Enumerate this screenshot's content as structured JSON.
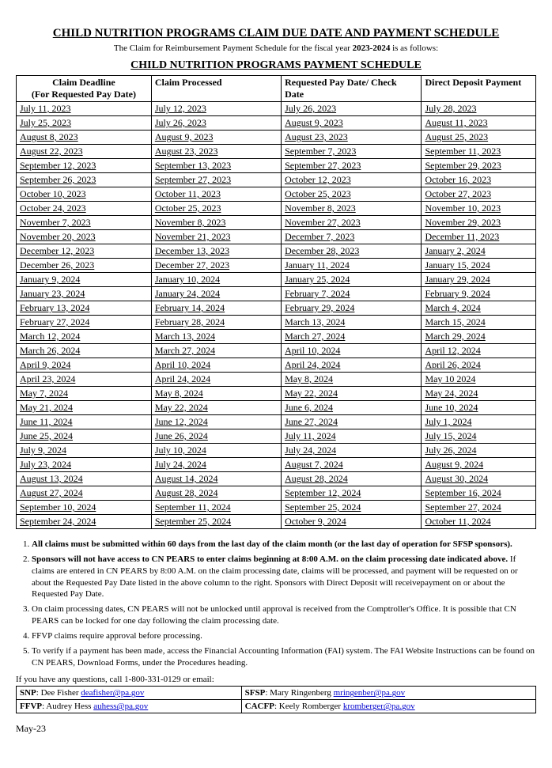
{
  "title": "CHILD NUTRITION PROGRAMS CLAIM DUE DATE AND PAYMENT SCHEDULE",
  "subtitle_pre": "The Claim for Reimbursement Payment Schedule for the fiscal year ",
  "subtitle_year": "2023-2024",
  "subtitle_post": " is as follows:",
  "heading2": "CHILD NUTRITION PROGRAMS PAYMENT SCHEDULE",
  "columns": {
    "c1a": "Claim Deadline",
    "c1b": "(For Requested Pay Date)",
    "c2": "Claim Processed",
    "c3": "Requested Pay Date/ Check Date",
    "c4": "Direct Deposit Payment"
  },
  "rows": [
    [
      "July 11, 2023",
      "July 12, 2023",
      "July 26, 2023",
      "July 28, 2023"
    ],
    [
      "July 25, 2023",
      "July 26, 2023",
      "August 9, 2023",
      "August 11, 2023"
    ],
    [
      "August 8, 2023",
      "August 9, 2023",
      "August 23, 2023",
      "August 25, 2023"
    ],
    [
      "August 22, 2023",
      "August 23, 2023",
      "September 7, 2023",
      "September 11, 2023"
    ],
    [
      "September 12, 2023",
      "September 13, 2023",
      "September 27, 2023",
      "September 29, 2023"
    ],
    [
      "September 26, 2023",
      "September 27, 2023",
      "October 12, 2023",
      "October 16, 2023"
    ],
    [
      "October 10, 2023",
      "October 11, 2023",
      "October 25, 2023",
      "October 27, 2023"
    ],
    [
      "October 24, 2023",
      "October 25, 2023",
      "November 8, 2023",
      "November 10, 2023"
    ],
    [
      "November 7, 2023",
      "November 8, 2023",
      "November 27, 2023",
      "November 29, 2023"
    ],
    [
      "November 20, 2023",
      "November 21, 2023",
      "December 7, 2023",
      "December 11, 2023"
    ],
    [
      "December 12, 2023",
      "December 13, 2023",
      "December 28, 2023",
      "January 2, 2024"
    ],
    [
      "December 26, 2023",
      "December 27, 2023",
      "January 11, 2024",
      "January 15, 2024"
    ],
    [
      "January 9, 2024",
      "January 10, 2024",
      "January 25, 2024",
      "January 29, 2024"
    ],
    [
      "January 23, 2024",
      "January 24, 2024",
      "February 7, 2024",
      "February 9, 2024"
    ],
    [
      "February 13, 2024",
      "February 14, 2024",
      "February 29, 2024",
      "March 4, 2024"
    ],
    [
      "February 27, 2024",
      "February 28, 2024",
      "March 13, 2024",
      "March 15, 2024"
    ],
    [
      "March 12, 2024",
      "March 13, 2024",
      "March 27, 2024",
      "March 29, 2024"
    ],
    [
      "March 26, 2024",
      "March 27, 2024",
      "April 10, 2024",
      "April 12, 2024"
    ],
    [
      "April 9, 2024",
      "April 10, 2024",
      "April 24, 2024",
      "April 26, 2024"
    ],
    [
      "April 23, 2024",
      "April 24, 2024",
      "May 8, 2024",
      "May 10 2024"
    ],
    [
      "May 7, 2024",
      "May 8, 2024",
      "May 22, 2024",
      "May 24, 2024"
    ],
    [
      "May 21, 2024",
      "May 22, 2024",
      "June 6, 2024",
      "June 10, 2024"
    ],
    [
      "June 11, 2024",
      "June 12, 2024",
      "June 27, 2024",
      "July 1, 2024"
    ],
    [
      "June 25, 2024",
      "June 26, 2024",
      "July 11, 2024",
      "July 15, 2024"
    ],
    [
      "July 9, 2024",
      "July 10, 2024",
      "July 24, 2024",
      "July 26, 2024"
    ],
    [
      "July 23, 2024",
      "July 24, 2024",
      "August 7, 2024",
      "August 9, 2024"
    ],
    [
      "August 13, 2024",
      "August 14, 2024",
      "August 28, 2024",
      "August 30, 2024"
    ],
    [
      "August 27, 2024",
      "August 28, 2024",
      "September 12, 2024",
      "September 16, 2024"
    ],
    [
      "September 10, 2024",
      "September 11, 2024",
      "September 25, 2024",
      "September 27, 2024"
    ],
    [
      "September 24, 2024",
      "September 25, 2024",
      "October 9, 2024",
      "October 11, 2024"
    ]
  ],
  "notes": [
    "All claims must be submitted within 60 days from the last day of the claim month (or the last day of operation for SFSP sponsors).",
    "Sponsors will not have access to CN PEARS to enter claims beginning at 8:00 A.M. on the claim processing date indicated above. If claims are entered in CN PEARS by 8:00 A.M. on the claim processing date, claims will be processed, and payment will be requested on or about the Requested Pay Date listed in the above column to the right. Sponsors with Direct Deposit will receivepayment on or about the Requested Pay Date.",
    "On claim processing dates, CN PEARS will not be unlocked until approval is received from the Comptroller's Office. It is possible that CN PEARS can be locked for one day following the claim processing date.",
    "FFVP claims require approval before processing.",
    "To verify if a payment has been made, access the Financial Accounting Information (FAI) system. The FAI Website Instructions can be found on CN PEARS, Download Forms, under the Procedures heading."
  ],
  "contacts_intro": "If you have any questions, call 1-800-331-0129 or email:",
  "contacts": [
    {
      "prog": "SNP",
      "name": ": Dee Fisher  ",
      "email": "deafisher@pa.gov"
    },
    {
      "prog": "SFSP",
      "name": ": Mary Ringenberg  ",
      "email": "mringenber@pa.gov"
    },
    {
      "prog": "FFVP",
      "name": ": Audrey Hess  ",
      "email": "auhess@pa.gov"
    },
    {
      "prog": "CACFP",
      "name": ": Keely Romberger  ",
      "email": "kromberger@pa.gov"
    }
  ],
  "footer": "May-23"
}
